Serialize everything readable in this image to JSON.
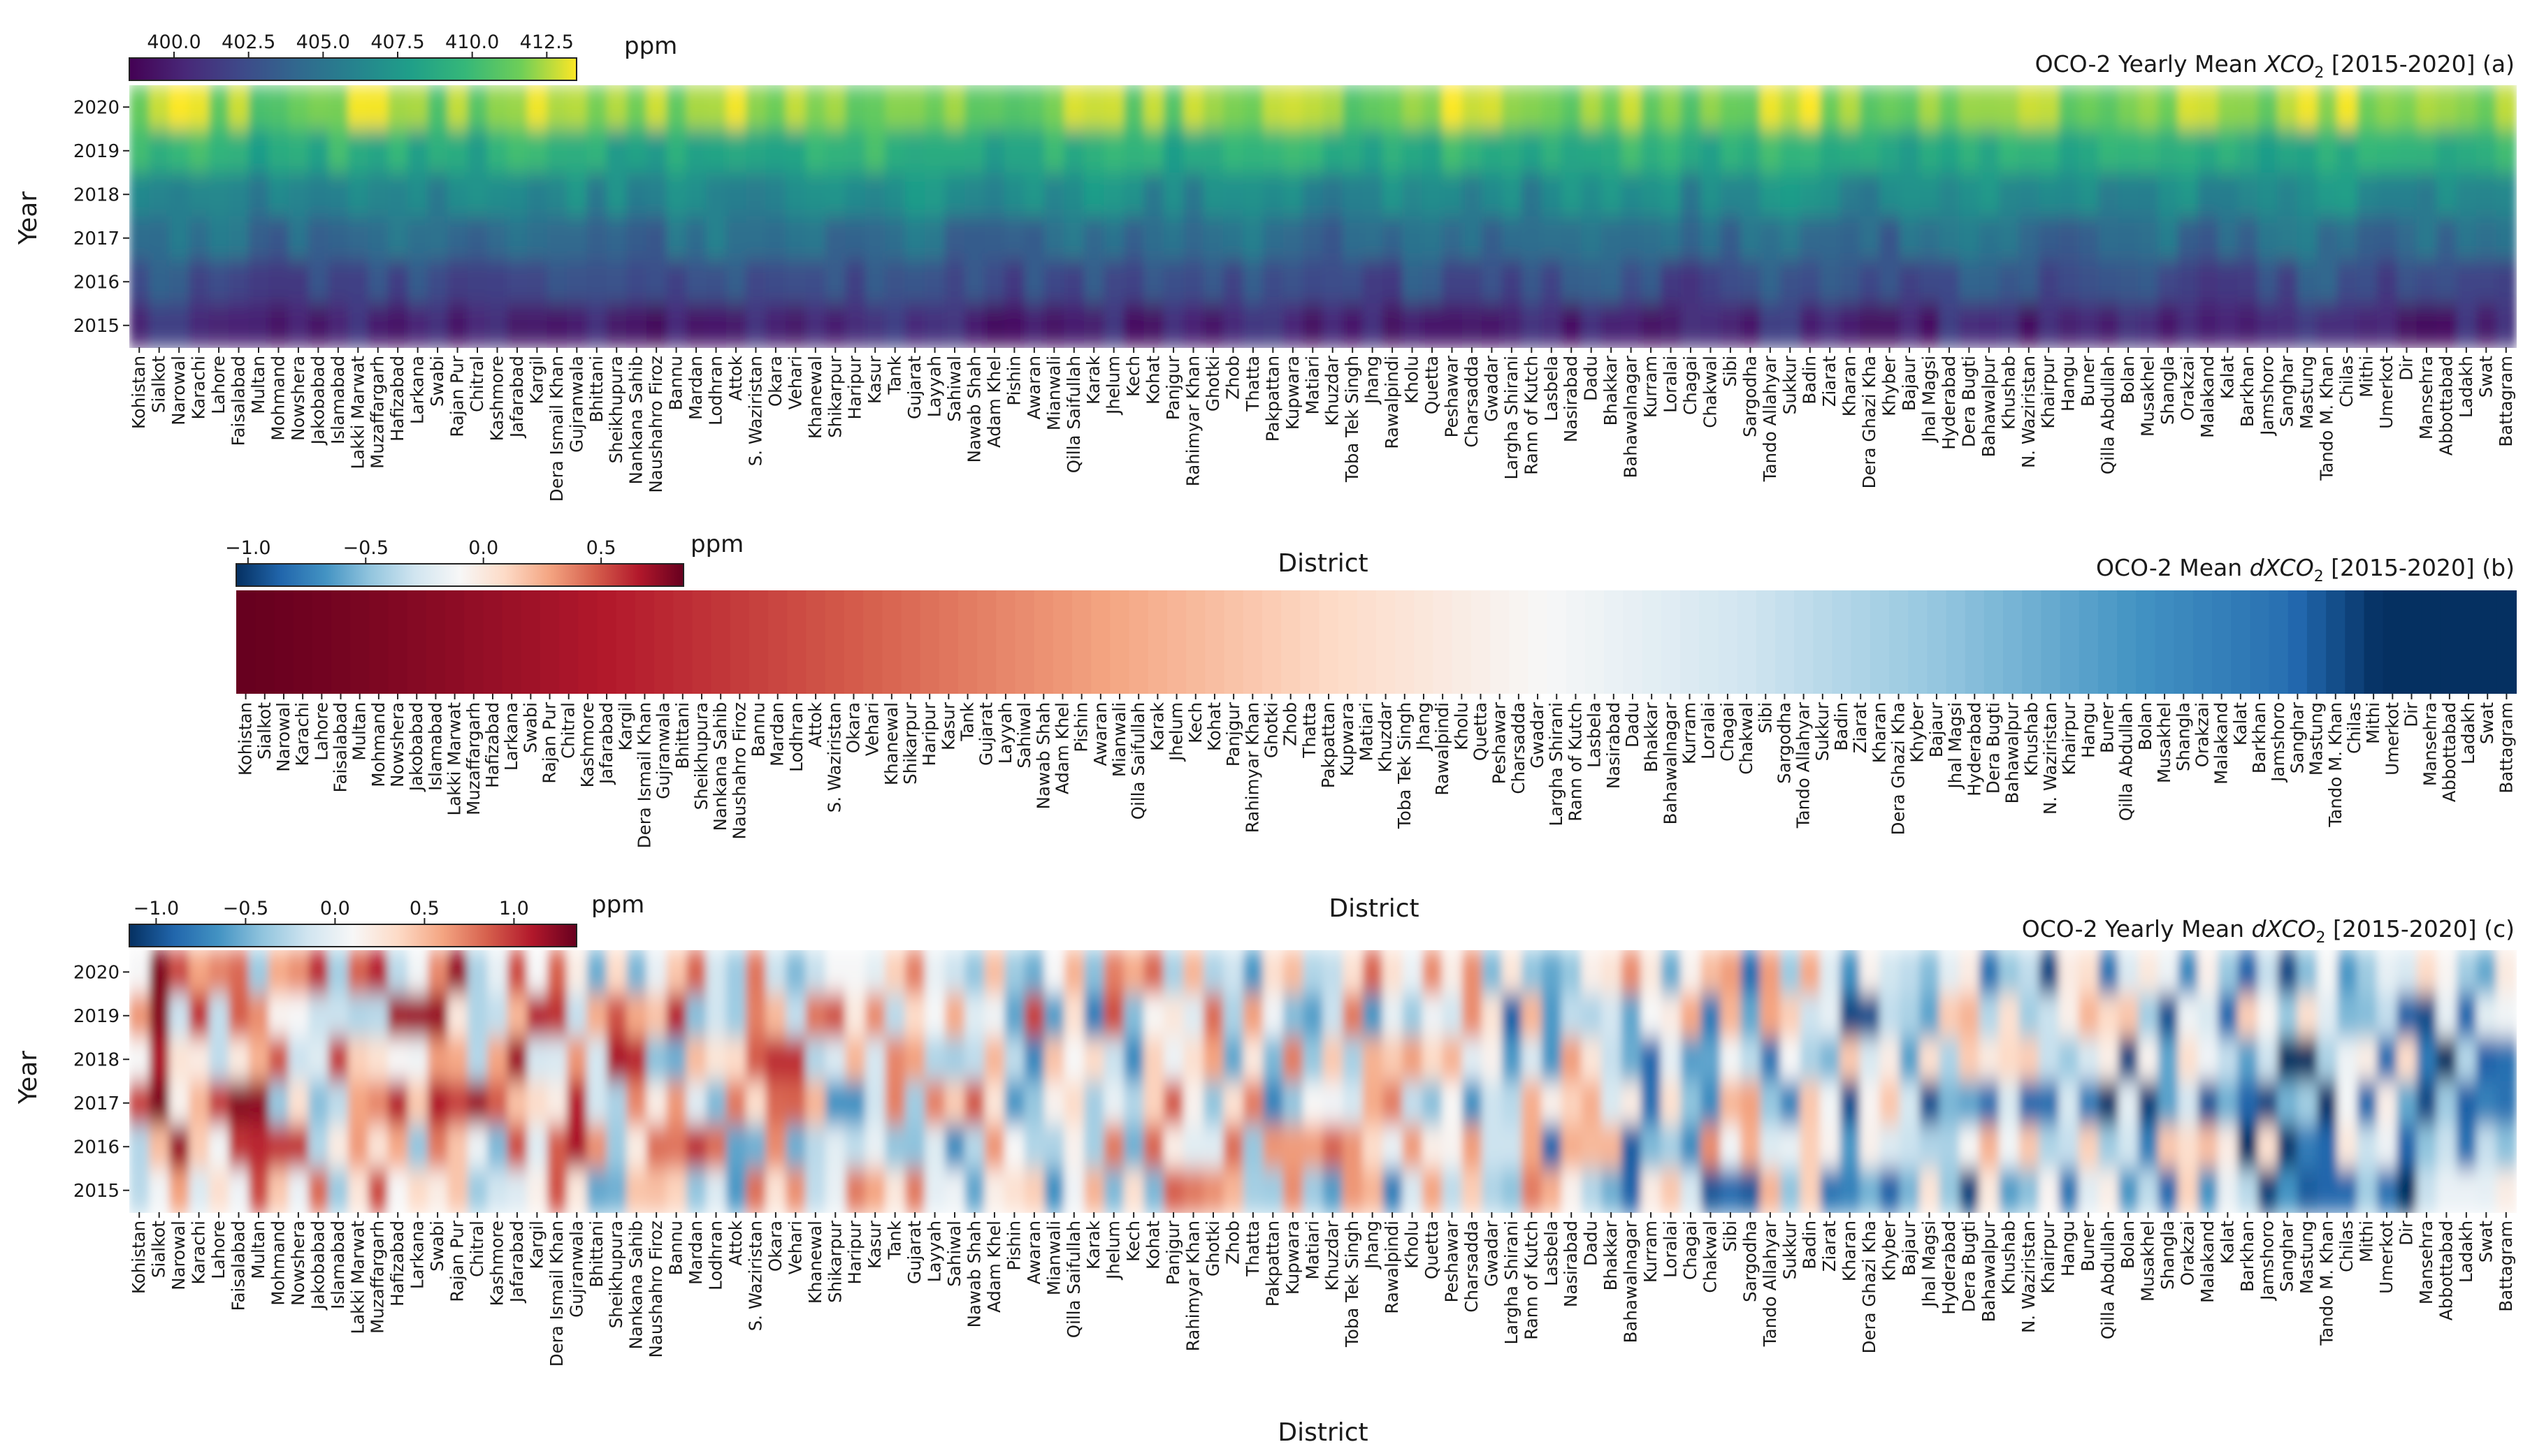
{
  "chart_data": [
    {
      "id": "a",
      "type": "heatmap",
      "title_prefix": "OCO-2 Yearly Mean ",
      "title_var": "XCO",
      "title_sub": "2",
      "title_suffix": " [2015-2020] (a)",
      "xlabel": "District",
      "ylabel": "Year",
      "years": [
        "2020",
        "2019",
        "2018",
        "2017",
        "2016",
        "2015"
      ],
      "colormap": "viridis",
      "colorbar": {
        "label": "ppm",
        "ticks": [
          "400.0",
          "402.5",
          "405.0",
          "407.5",
          "410.0",
          "412.5"
        ],
        "range": [
          398.5,
          413.5
        ]
      },
      "year_means_ppm": [
        412.0,
        409.0,
        406.5,
        404.5,
        402.5,
        400.3
      ]
    },
    {
      "id": "b",
      "type": "heatmap",
      "title_prefix": "OCO-2 Mean ",
      "title_var": "dXCO",
      "title_sub": "2",
      "title_suffix": " [2015-2020] (b)",
      "xlabel": "District",
      "colormap": "RdBu_r",
      "colorbar": {
        "label": "ppm",
        "ticks": [
          "−1.0",
          "−0.5",
          "0.0",
          "0.5"
        ],
        "range": [
          -1.05,
          0.85
        ]
      },
      "note": "districts sorted from highest to lowest mean dXCO2"
    },
    {
      "id": "c",
      "type": "heatmap",
      "title_prefix": "OCO-2 Yearly Mean ",
      "title_var": "dXCO",
      "title_sub": "2",
      "title_suffix": " [2015-2020] (c)",
      "xlabel": "District",
      "ylabel": "Year",
      "years": [
        "2020",
        "2019",
        "2018",
        "2017",
        "2016",
        "2015"
      ],
      "colormap": "RdBu_r",
      "colorbar": {
        "label": "ppm",
        "ticks": [
          "−1.0",
          "−0.5",
          "0.0",
          "0.5",
          "1.0"
        ],
        "range": [
          -1.15,
          1.35
        ]
      }
    }
  ],
  "districts": [
    "Kohistan",
    "Sialkot",
    "Narowal",
    "Karachi",
    "Lahore",
    "Faisalabad",
    "Multan",
    "Mohmand",
    "Nowshera",
    "Jakobabad",
    "Islamabad",
    "Lakki Marwat",
    "Muzaffargarh",
    "Hafizabad",
    "Larkana",
    "Swabi",
    "Rajan Pur",
    "Chitral",
    "Kashmore",
    "Jafarabad",
    "Kargil",
    "Dera Ismail Khan",
    "Gujranwala",
    "Bhittani",
    "Sheikhupura",
    "Nankana Sahib",
    "Naushahro Firoz",
    "Bannu",
    "Mardan",
    "Lodhran",
    "Attok",
    "S. Waziristan",
    "Okara",
    "Vehari",
    "Khanewal",
    "Shikarpur",
    "Haripur",
    "Kasur",
    "Tank",
    "Gujarat",
    "Layyah",
    "Sahiwal",
    "Nawab Shah",
    "Adam Khel",
    "Pishin",
    "Awaran",
    "Mianwali",
    "Qilla Saifullah",
    "Karak",
    "Jhelum",
    "Kech",
    "Kohat",
    "Panjgur",
    "Rahimyar Khan",
    "Ghotki",
    "Zhob",
    "Thatta",
    "Pakpattan",
    "Kupwara",
    "Matiari",
    "Khuzdar",
    "Toba Tek Singh",
    "Jhang",
    "Rawalpindi",
    "Kholu",
    "Quetta",
    "Peshawar",
    "Charsadda",
    "Gwadar",
    "Largha Shirani",
    "Rann of Kutch",
    "Lasbela",
    "Nasirabad",
    "Dadu",
    "Bhakkar",
    "Bahawalnagar",
    "Kurram",
    "Loralai",
    "Chagai",
    "Chakwal",
    "Sibi",
    "Sargodha",
    "Tando Allahyar",
    "Sukkur",
    "Badin",
    "Ziarat",
    "Kharan",
    "Dera Ghazi Kha",
    "Khyber",
    "Bajaur",
    "Jhal Magsi",
    "Hyderabad",
    "Dera Bugti",
    "Bahawalpur",
    "Khushab",
    "N. Waziristan",
    "Khairpur",
    "Hangu",
    "Buner",
    "Qilla Abdullah",
    "Bolan",
    "Musakhel",
    "Shangla",
    "Orakzai",
    "Malakand",
    "Kalat",
    "Barkhan",
    "Jamshoro",
    "Sanghar",
    "Mastung",
    "Tando M. Khan",
    "Chilas",
    "Mithi",
    "Umerkot",
    "Dir",
    "Mansehra",
    "Abbottabad",
    "Ladakh",
    "Swat",
    "Battagram"
  ],
  "districts_b": [
    "Kohistan",
    "Sialkot",
    "Narowal",
    "Karachi",
    "Lahore",
    "Faisalabad",
    "Multan",
    "Mohmand",
    "Nowshera",
    "Jakobabad",
    "Islamabad",
    "Lakki Marwat",
    "Muzaffargarh",
    "Hafizabad",
    "Larkana",
    "Swabi",
    "Rajan Pur",
    "Chitral",
    "Kashmore",
    "Jafarabad",
    "Kargil",
    "Dera Ismail Khan",
    "Gujranwala",
    "Bhittani",
    "Sheikhupura",
    "Nankana Sahib",
    "Naushahro Firoz",
    "Bannu",
    "Mardan",
    "Lodhran",
    "Attok",
    "S. Waziristan",
    "Okara",
    "Vehari",
    "Khanewal",
    "Shikarpur",
    "Haripur",
    "Kasur",
    "Tank",
    "Gujarat",
    "Layyah",
    "Sahiwal",
    "Nawab Shah",
    "Adam Khel",
    "Pishin",
    "Awaran",
    "Mianwali",
    "Qilla Saifullah",
    "Karak",
    "Jhelum",
    "Kech",
    "Kohat",
    "Panjgur",
    "Rahimyar Khan",
    "Ghotki",
    "Zhob",
    "Thatta",
    "Pakpattan",
    "Kupwara",
    "Matiari",
    "Khuzdar",
    "Toba Tek Singh",
    "Jhang",
    "Rawalpindi",
    "Kholu",
    "Quetta",
    "Peshawar",
    "Charsadda",
    "Gwadar",
    "Largha Shirani",
    "Rann of Kutch",
    "Lasbela",
    "Nasirabad",
    "Dadu",
    "Bhakkar",
    "Bahawalnagar",
    "Kurram",
    "Loralai",
    "Chagai",
    "Chakwal",
    "Sibi",
    "Sargodha",
    "Tando Allahyar",
    "Sukkur",
    "Badin",
    "Ziarat",
    "Kharan",
    "Dera Ghazi Kha",
    "Khyber",
    "Bajaur",
    "Jhal Magsi",
    "Hyderabad",
    "Dera Bugti",
    "Bahawalpur",
    "Khushab",
    "N. Waziristan",
    "Khairpur",
    "Hangu",
    "Buner",
    "Qilla Abdullah",
    "Bolan",
    "Musakhel",
    "Shangla",
    "Orakzai",
    "Malakand",
    "Kalat",
    "Barkhan",
    "Jamshoro",
    "Sanghar",
    "Mastung",
    "Tando M. Khan",
    "Chilas",
    "Mithi",
    "Umerkot",
    "Dir",
    "Mansehra",
    "Abbottabad",
    "Ladakh",
    "Swat",
    "Battagram"
  ]
}
